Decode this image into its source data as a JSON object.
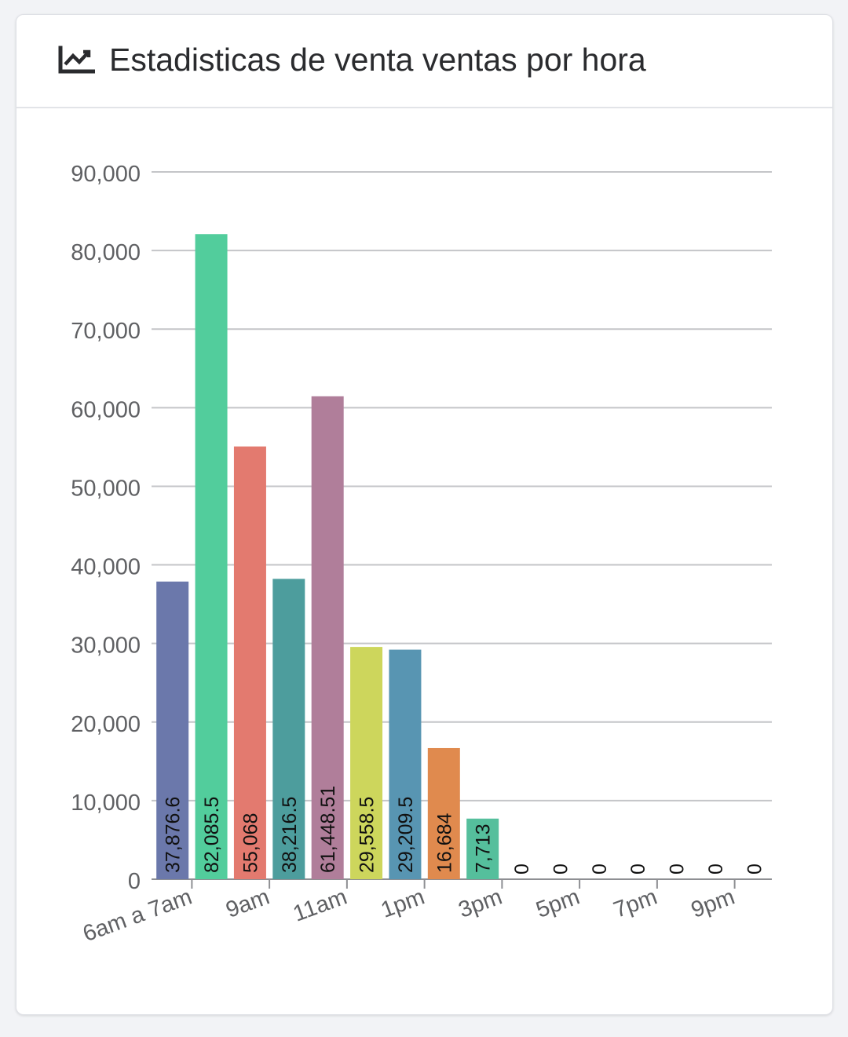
{
  "card": {
    "title": "Estadisticas de venta ventas por hora",
    "icon": "chart-line-icon"
  },
  "chart_data": {
    "type": "bar",
    "title": "Estadisticas de venta ventas por hora",
    "xlabel": "",
    "ylabel": "",
    "ylim": [
      0,
      90000
    ],
    "yticks": [
      "0",
      "10,000",
      "20,000",
      "30,000",
      "40,000",
      "50,000",
      "60,000",
      "70,000",
      "80,000",
      "90,000"
    ],
    "grid": true,
    "legend": "none",
    "categories": [
      "6am a 7am",
      "",
      "9am",
      "",
      "11am",
      "",
      "1pm",
      "",
      "3pm",
      "",
      "5pm",
      "",
      "7pm",
      "",
      "9pm",
      ""
    ],
    "values": [
      37876.6,
      82085.5,
      55068,
      38216.5,
      61448.51,
      29558.5,
      29209.5,
      16684,
      7713,
      0,
      0,
      0,
      0,
      0,
      0,
      0
    ],
    "value_labels": [
      "37,876.6",
      "82,085.5",
      "55,068",
      "38,216.5",
      "61,448.51",
      "29,558.5",
      "29,209.5",
      "16,684",
      "7,713",
      "0",
      "0",
      "0",
      "0",
      "0",
      "0",
      "0"
    ],
    "colors": [
      "#6b78ab",
      "#52cd9c",
      "#e37a6f",
      "#4d9d9d",
      "#b07e9a",
      "#cdd65c",
      "#5895b2",
      "#e08a4e",
      "#55bf9c",
      "#6b78ab",
      "#52cd9c",
      "#e37a6f",
      "#4d9d9d",
      "#b07e9a",
      "#cdd65c",
      "#5895b2"
    ]
  }
}
